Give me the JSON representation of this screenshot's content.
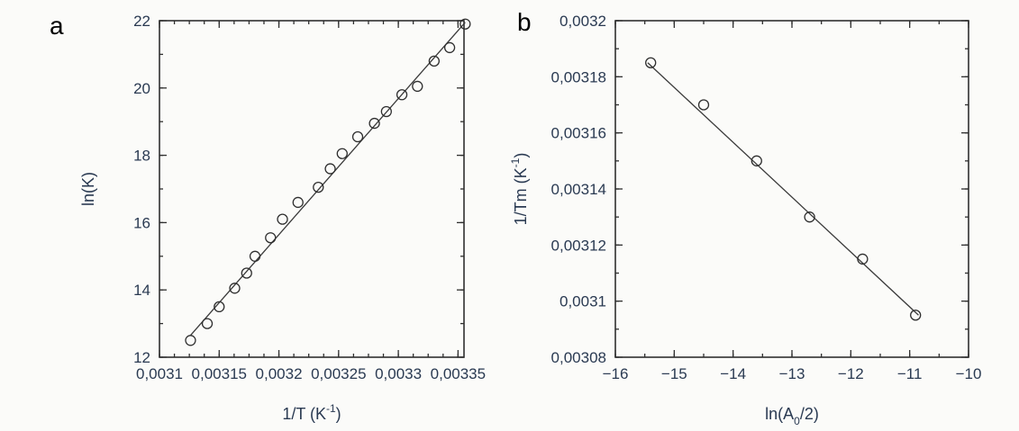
{
  "chart_data": [
    {
      "panel_label": "a",
      "type": "scatter",
      "xlabel_main": "1/T (K",
      "xlabel_sup": "-1",
      "xlabel_end": ")",
      "ylabel": "ln(K)",
      "xlim": [
        0.0031,
        0.003355
      ],
      "ylim": [
        12,
        22
      ],
      "xticks": [
        0.0031,
        0.00315,
        0.0032,
        0.00325,
        0.0033,
        0.00335
      ],
      "xtick_labels": [
        "0,0031",
        "0,00315",
        "0,0032",
        "0,00325",
        "0,0033",
        "0,00335"
      ],
      "yticks": [
        12,
        14,
        16,
        18,
        20,
        22
      ],
      "ytick_labels": [
        "12",
        "14",
        "16",
        "18",
        "20",
        "22"
      ],
      "x_minor_step": 1.25e-05,
      "y_minor_step": 1,
      "points": {
        "x": [
          0.003126,
          0.00314,
          0.00315,
          0.003163,
          0.003173,
          0.00318,
          0.003193,
          0.003203,
          0.003216,
          0.003233,
          0.003243,
          0.003253,
          0.003266,
          0.00328,
          0.00329,
          0.003303,
          0.003316,
          0.00333,
          0.003343,
          0.003356
        ],
        "y": [
          12.5,
          13.0,
          13.5,
          14.05,
          14.5,
          15.0,
          15.55,
          16.1,
          16.6,
          17.05,
          17.6,
          18.05,
          18.55,
          18.95,
          19.3,
          19.8,
          20.05,
          20.8,
          21.2,
          21.9
        ]
      },
      "fit_line": {
        "x": [
          0.003126,
          0.003356
        ],
        "y": [
          12.65,
          21.95
        ]
      }
    },
    {
      "panel_label": "b",
      "type": "scatter",
      "xlabel_main": "ln(A",
      "xlabel_sub": "0",
      "xlabel_end": "/2)",
      "ylabel_main": "1/Tm (K",
      "ylabel_sup": "-1",
      "ylabel_end": ")",
      "xlim": [
        -16,
        -10
      ],
      "ylim": [
        0.00308,
        0.0032
      ],
      "xticks": [
        -16,
        -15,
        -14,
        -13,
        -12,
        -11,
        -10
      ],
      "xtick_labels": [
        "−16",
        "−15",
        "−14",
        "−13",
        "−12",
        "−11",
        "−10"
      ],
      "yticks": [
        0.00308,
        0.0031,
        0.00312,
        0.00314,
        0.00316,
        0.00318,
        0.0032
      ],
      "ytick_labels": [
        "0,00308",
        "0,0031",
        "0,00312",
        "0,00314",
        "0,00316",
        "0,00318",
        "0,0032"
      ],
      "x_minor_step": 0.5,
      "y_minor_step": 1e-05,
      "points": {
        "x": [
          -15.4,
          -14.5,
          -13.6,
          -12.7,
          -11.8,
          -10.9
        ],
        "y": [
          0.003185,
          0.00317,
          0.00315,
          0.00313,
          0.003115,
          0.003095
        ]
      },
      "fit_line": {
        "x": [
          -15.45,
          -10.85
        ],
        "y": [
          0.003185,
          0.003095
        ]
      }
    }
  ]
}
